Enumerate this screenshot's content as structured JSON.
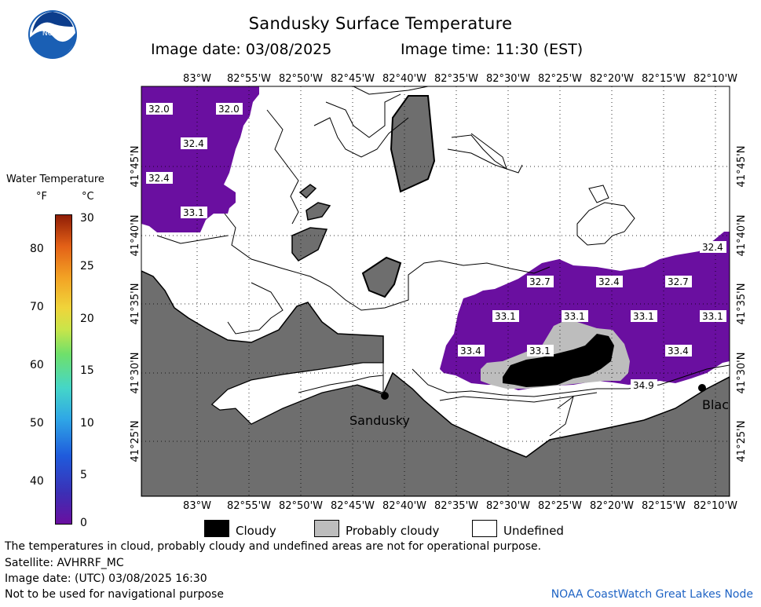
{
  "title": "Sandusky Surface Temperature",
  "image_date_label": "Image date: 03/08/2025",
  "image_time_label": "Image time: 11:30 (EST)",
  "scale": {
    "title": "Water Temperature",
    "unit_f": "°F",
    "unit_c": "°C",
    "f_ticks": [
      "80",
      "70",
      "60",
      "50",
      "40"
    ],
    "c_ticks": [
      "30",
      "25",
      "20",
      "15",
      "10",
      "5",
      "0"
    ]
  },
  "map": {
    "lon_labels": [
      "83°W",
      "82°55'W",
      "82°50'W",
      "82°45'W",
      "82°40'W",
      "82°35'W",
      "82°30'W",
      "82°25'W",
      "82°20'W",
      "82°15'W",
      "82°10'W"
    ],
    "lat_labels": [
      "41°45'N",
      "41°40'N",
      "41°35'N",
      "41°30'N",
      "41°25'N"
    ],
    "temp_labels": [
      "32.0",
      "32.0",
      "32.4",
      "32.4",
      "33.1",
      "32.4",
      "32.7",
      "32.4",
      "32.7",
      "33.1",
      "33.1",
      "33.1",
      "33.1",
      "33.4",
      "33.1",
      "33.4",
      "34.9"
    ],
    "cities": [
      "Sandusky",
      "Blac"
    ],
    "colors": {
      "land": "#6e6e6e",
      "water": "#ffffff",
      "ice_purple": "#6a0fa0",
      "cloudy": "#000000",
      "probably_cloudy": "#bdbdbd"
    }
  },
  "legend": {
    "cloudy": "Cloudy",
    "probably_cloudy": "Probably cloudy",
    "undefined": "Undefined"
  },
  "notes": {
    "disclaimer": "The temperatures in cloud, probably cloudy and undefined areas are not for operational purpose.",
    "satellite": "Satellite: AVHRRF_MC",
    "utc_date": "Image date: (UTC) 03/08/2025  16:30",
    "navigation": "Not to be used for navigational purpose"
  },
  "credit": "NOAA CoastWatch Great Lakes Node",
  "logo_text": "NOAA"
}
